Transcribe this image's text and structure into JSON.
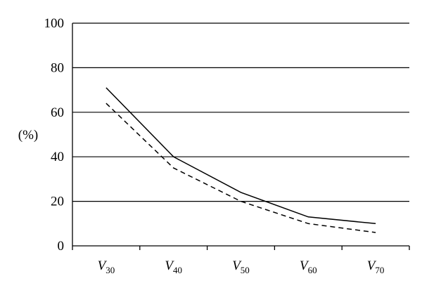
{
  "chart_data": {
    "type": "line",
    "categories": [
      {
        "main": "V",
        "sub": "30"
      },
      {
        "main": "V",
        "sub": "40"
      },
      {
        "main": "V",
        "sub": "50"
      },
      {
        "main": "V",
        "sub": "60"
      },
      {
        "main": "V",
        "sub": "70"
      }
    ],
    "series": [
      {
        "values": [
          71,
          40,
          24,
          13,
          10
        ],
        "style": "solid"
      },
      {
        "values": [
          64,
          35,
          20,
          10,
          6
        ],
        "style": "dashed"
      }
    ],
    "ylabel": "(%)",
    "ylim": [
      0,
      100
    ],
    "yticks": [
      0,
      20,
      40,
      60,
      80,
      100
    ],
    "grid": true
  }
}
